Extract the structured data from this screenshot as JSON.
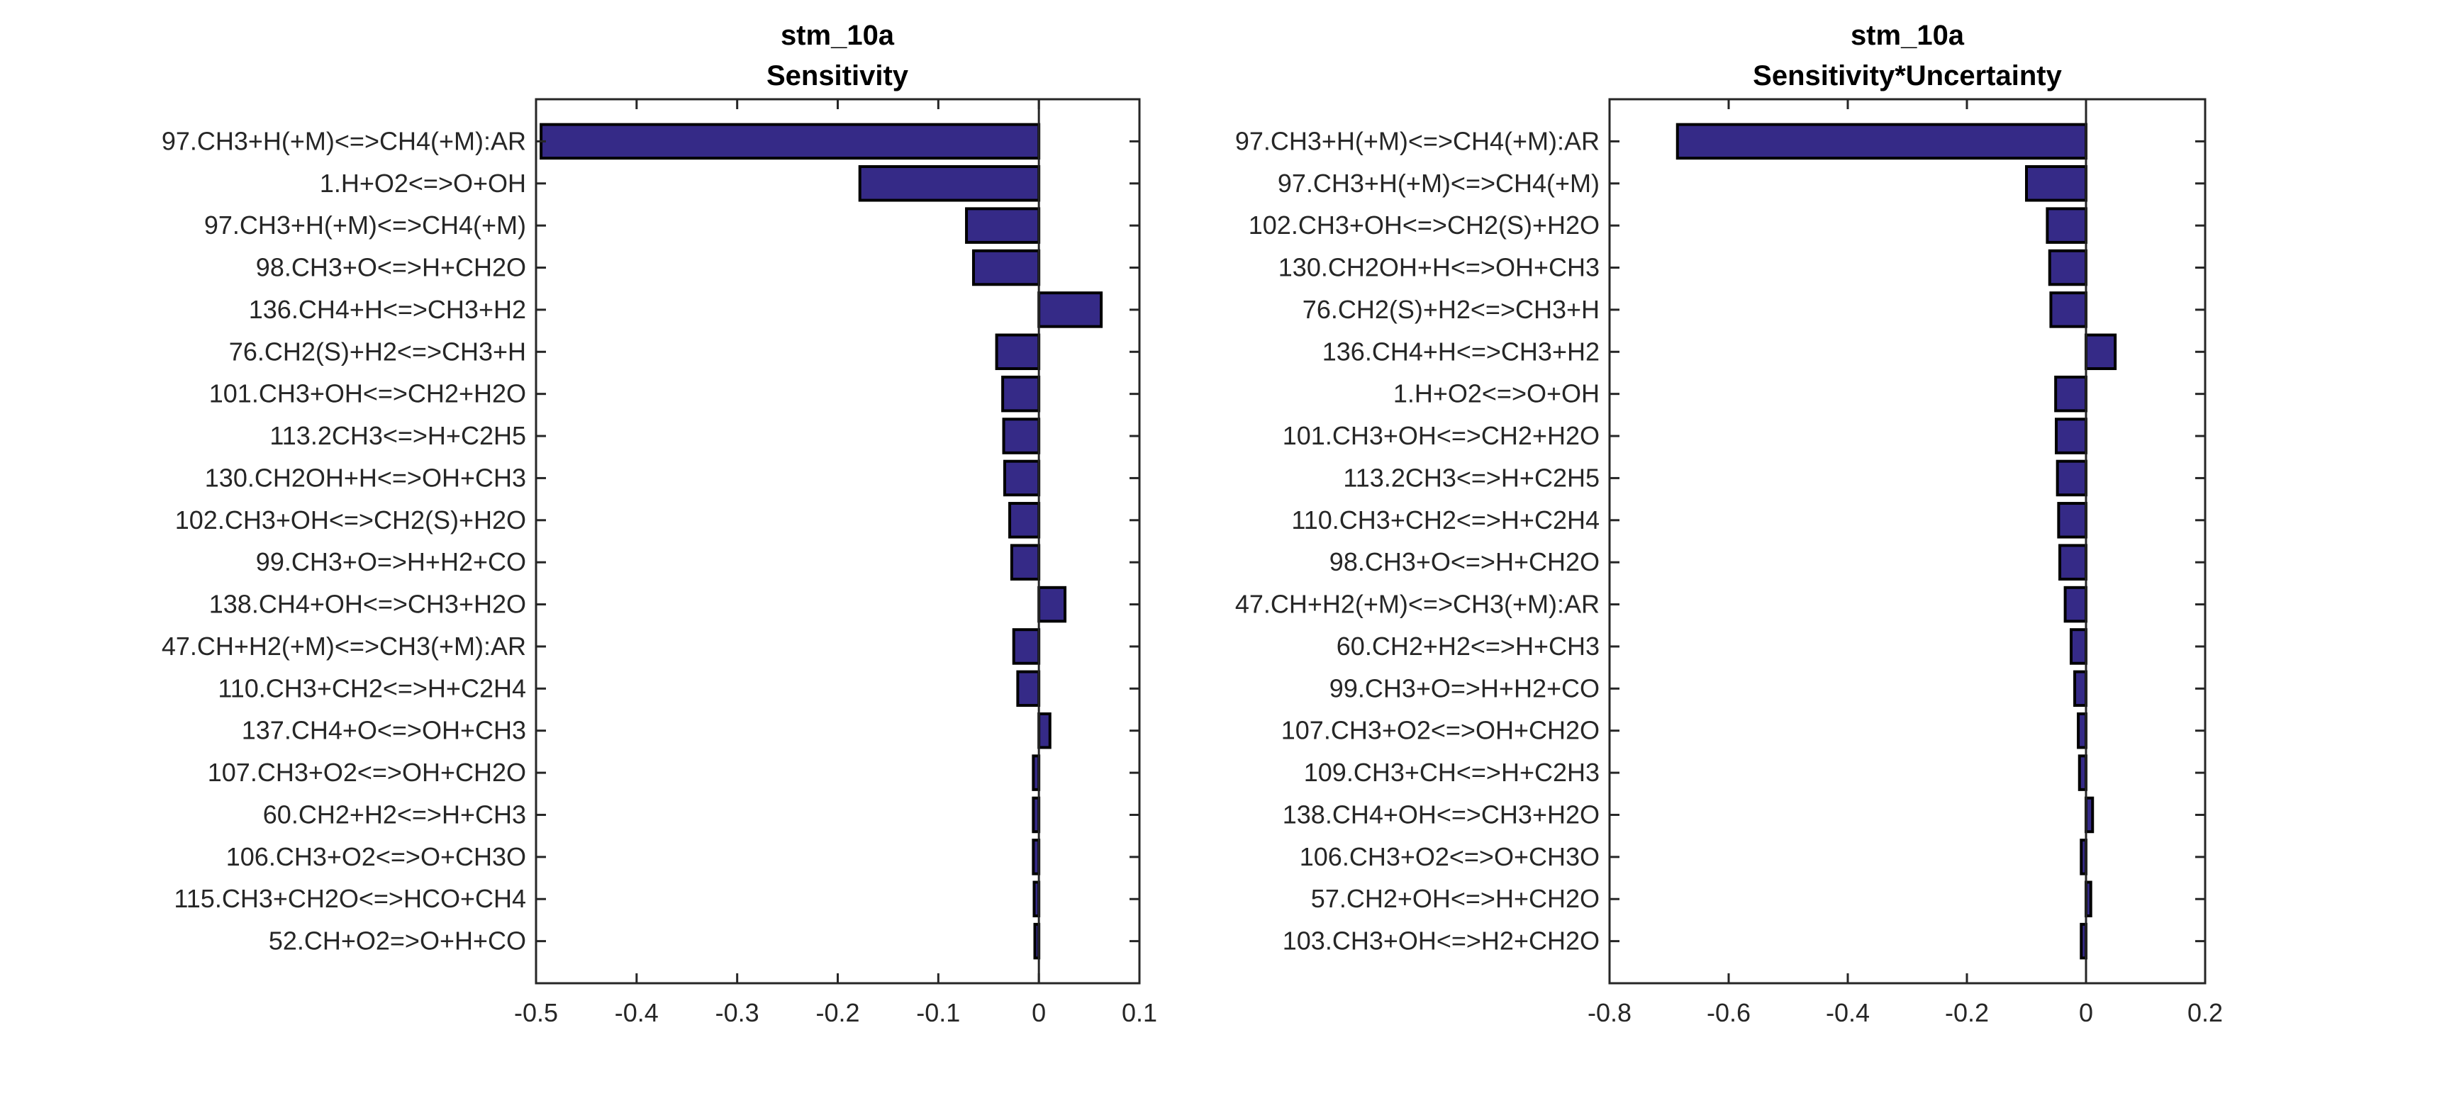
{
  "chart_data": [
    {
      "type": "bar",
      "orientation": "horizontal",
      "title": "stm_10a",
      "subtitle": "Sensitivity",
      "xlabel": "",
      "ylabel": "",
      "xlim": [
        -0.5,
        0.1
      ],
      "xticks": [
        -0.5,
        -0.4,
        -0.3,
        -0.2,
        -0.1,
        0,
        0.1
      ],
      "xtick_labels": [
        "-0.5",
        "-0.4",
        "-0.3",
        "-0.2",
        "-0.1",
        "0",
        "0.1"
      ],
      "grid": false,
      "bar_color": "#352A87",
      "edge_color": "#000000",
      "categories": [
        "97.CH3+H(+M)<=>CH4(+M):AR",
        "1.H+O2<=>O+OH",
        "97.CH3+H(+M)<=>CH4(+M)",
        "98.CH3+O<=>H+CH2O",
        "136.CH4+H<=>CH3+H2",
        "76.CH2(S)+H2<=>CH3+H",
        "101.CH3+OH<=>CH2+H2O",
        "113.2CH3<=>H+C2H5",
        "130.CH2OH+H<=>OH+CH3",
        "102.CH3+OH<=>CH2(S)+H2O",
        "99.CH3+O=>H+H2+CO",
        "138.CH4+OH<=>CH3+H2O",
        "47.CH+H2(+M)<=>CH3(+M):AR",
        "110.CH3+CH2<=>H+C2H4",
        "137.CH4+O<=>OH+CH3",
        "107.CH3+O2<=>OH+CH2O",
        "60.CH2+H2<=>H+CH3",
        "106.CH3+O2<=>O+CH3O",
        "115.CH3+CH2O<=>HCO+CH4",
        "52.CH+O2=>O+H+CO"
      ],
      "values": [
        -0.495,
        -0.178,
        -0.072,
        -0.065,
        0.062,
        -0.042,
        -0.036,
        -0.035,
        -0.034,
        -0.029,
        -0.027,
        0.026,
        -0.025,
        -0.021,
        0.011,
        -0.0055,
        -0.0055,
        -0.0055,
        -0.0047,
        -0.004
      ]
    },
    {
      "type": "bar",
      "orientation": "horizontal",
      "title": "stm_10a",
      "subtitle": "Sensitivity*Uncertainty",
      "xlabel": "",
      "ylabel": "",
      "xlim": [
        -0.8,
        0.2
      ],
      "xticks": [
        -0.8,
        -0.6,
        -0.4,
        -0.2,
        0,
        0.2
      ],
      "xtick_labels": [
        "-0.8",
        "-0.6",
        "-0.4",
        "-0.2",
        "0",
        "0.2"
      ],
      "grid": false,
      "bar_color": "#352A87",
      "edge_color": "#000000",
      "categories": [
        "97.CH3+H(+M)<=>CH4(+M):AR",
        "97.CH3+H(+M)<=>CH4(+M)",
        "102.CH3+OH<=>CH2(S)+H2O",
        "130.CH2OH+H<=>OH+CH3",
        "76.CH2(S)+H2<=>CH3+H",
        "136.CH4+H<=>CH3+H2",
        "1.H+O2<=>O+OH",
        "101.CH3+OH<=>CH2+H2O",
        "113.2CH3<=>H+C2H5",
        "110.CH3+CH2<=>H+C2H4",
        "98.CH3+O<=>H+CH2O",
        "47.CH+H2(+M)<=>CH3(+M):AR",
        "60.CH2+H2<=>H+CH3",
        "99.CH3+O=>H+H2+CO",
        "107.CH3+O2<=>OH+CH2O",
        "109.CH3+CH<=>H+C2H3",
        "138.CH4+OH<=>CH3+H2O",
        "106.CH3+O2<=>O+CH3O",
        "57.CH2+OH<=>H+CH2O",
        "103.CH3+OH<=>H2+CH2O"
      ],
      "values": [
        -0.686,
        -0.1,
        -0.065,
        -0.061,
        -0.059,
        0.049,
        -0.051,
        -0.05,
        -0.048,
        -0.046,
        -0.044,
        -0.035,
        -0.025,
        -0.019,
        -0.013,
        -0.011,
        0.011,
        -0.008,
        0.008,
        -0.008
      ]
    }
  ]
}
